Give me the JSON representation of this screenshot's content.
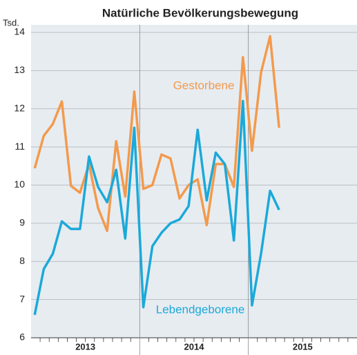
{
  "chart_data": {
    "type": "line",
    "title": "Natürliche Bevölkerungsbewegung",
    "y_unit": "Tsd.",
    "categories": [
      null,
      null,
      null,
      null,
      null,
      null,
      null,
      null,
      null,
      null,
      null,
      null,
      null,
      null,
      null,
      null,
      null,
      null,
      null,
      null,
      null,
      null,
      null,
      null,
      null,
      null,
      null,
      null
    ],
    "year_labels": [
      "2013",
      "2014",
      "2015"
    ],
    "series": [
      {
        "name": "Gestorbene",
        "color": "#f39a4c",
        "values": [
          10.44,
          11.29,
          11.6,
          12.19,
          9.98,
          9.8,
          10.55,
          9.4,
          8.8,
          11.15,
          9.7,
          12.45,
          9.9,
          10.0,
          10.8,
          10.7,
          9.65,
          10.0,
          10.15,
          8.95,
          10.55,
          10.55,
          9.95,
          13.35,
          10.9,
          12.95,
          13.9,
          11.5
        ]
      },
      {
        "name": "Lebendgeborene",
        "color": "#1ba9d9",
        "values": [
          6.6,
          7.8,
          8.2,
          9.05,
          8.85,
          8.85,
          10.75,
          9.95,
          9.55,
          10.4,
          8.6,
          11.5,
          6.8,
          8.4,
          8.75,
          9.0,
          9.1,
          9.45,
          11.45,
          9.6,
          10.85,
          10.55,
          8.55,
          12.2,
          6.85,
          8.2,
          9.85,
          9.35
        ]
      }
    ],
    "ylim": [
      6,
      14
    ],
    "yticks": [
      6,
      7,
      8,
      9,
      10,
      11,
      12,
      13,
      14
    ],
    "grid": true
  }
}
